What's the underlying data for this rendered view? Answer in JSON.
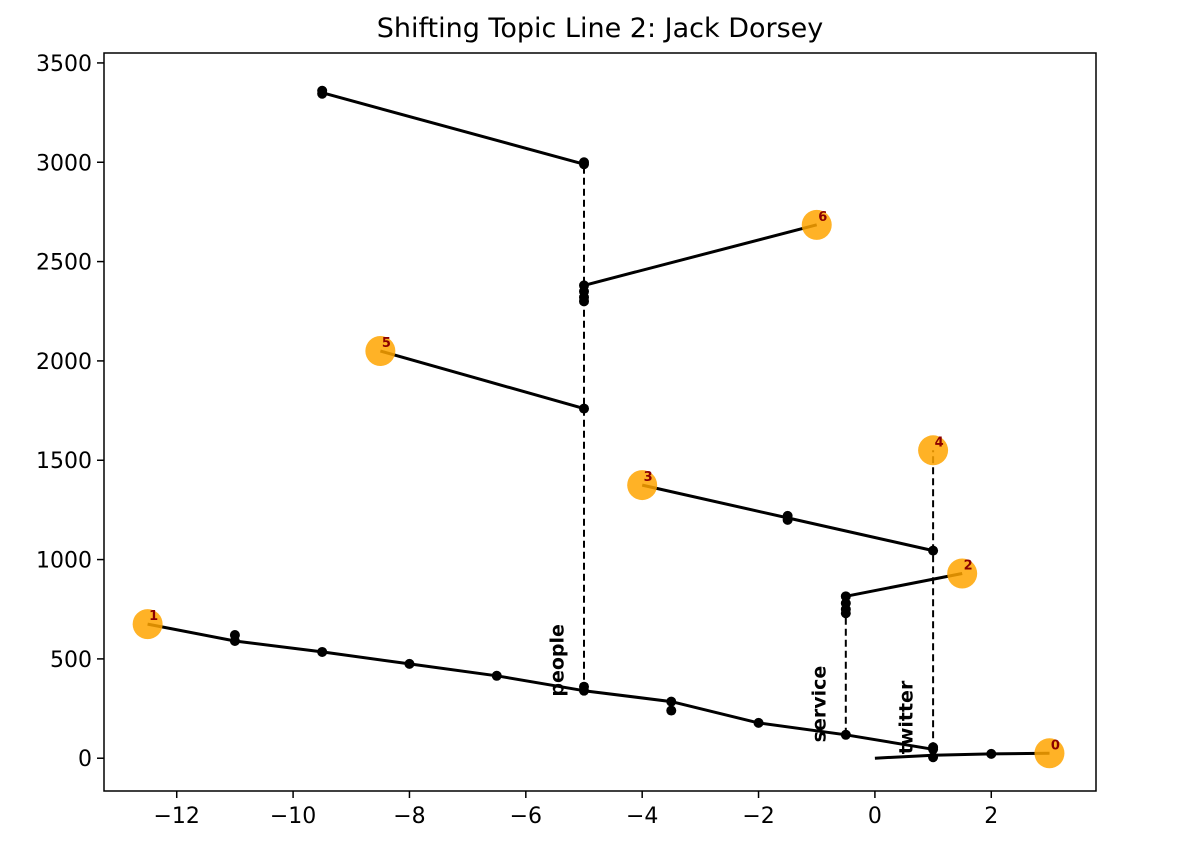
{
  "chart_data": {
    "type": "line",
    "title": "Shifting Topic Line 2: Jack Dorsey",
    "xlabel": "",
    "ylabel": "",
    "xlim": [
      -13.25,
      3.8
    ],
    "ylim": [
      -165,
      3550
    ],
    "x_ticks": [
      -12,
      -10,
      -8,
      -6,
      -4,
      -2,
      0,
      2
    ],
    "y_ticks": [
      0,
      500,
      1000,
      1500,
      2000,
      2500,
      3000,
      3500
    ],
    "grid": false,
    "colors": {
      "line": "#000000",
      "marker": "#000000",
      "highlight": "#ffa500",
      "highlight_label": "#8b0000"
    },
    "solid_segments": [
      [
        [
          -12.5,
          675
        ],
        [
          -11,
          590
        ],
        [
          -9.5,
          535
        ],
        [
          -8,
          475
        ],
        [
          -6.5,
          415
        ],
        [
          -5,
          340
        ],
        [
          -3.5,
          285
        ],
        [
          -2,
          178
        ],
        [
          -0.5,
          118
        ],
        [
          1,
          45
        ]
      ],
      [
        [
          0,
          0
        ],
        [
          1,
          15
        ],
        [
          2,
          22
        ],
        [
          3,
          25
        ]
      ],
      [
        [
          -0.5,
          815
        ],
        [
          1.5,
          930
        ]
      ],
      [
        [
          -4,
          1375
        ],
        [
          -1.5,
          1210
        ],
        [
          1,
          1045
        ]
      ],
      [
        [
          -8.5,
          2050
        ],
        [
          -5,
          1760
        ]
      ],
      [
        [
          -5,
          2380
        ],
        [
          -1,
          2685
        ]
      ],
      [
        [
          -9.5,
          3350
        ],
        [
          -5,
          2990
        ]
      ]
    ],
    "dashed_segments": [
      [
        [
          -5,
          340
        ],
        [
          -5,
          2990
        ]
      ],
      [
        [
          -0.5,
          118
        ],
        [
          -0.5,
          815
        ]
      ],
      [
        [
          1,
          45
        ],
        [
          1,
          1550
        ]
      ]
    ],
    "markers": [
      [
        -11,
        620
      ],
      [
        -11,
        590
      ],
      [
        -9.5,
        535
      ],
      [
        -8,
        475
      ],
      [
        -6.5,
        415
      ],
      [
        -5,
        360
      ],
      [
        -5,
        340
      ],
      [
        -3.5,
        285
      ],
      [
        -3.5,
        240
      ],
      [
        -2,
        178
      ],
      [
        -0.5,
        118
      ],
      [
        1,
        55
      ],
      [
        1,
        45
      ],
      [
        1,
        5
      ],
      [
        2,
        22
      ],
      [
        -0.5,
        815
      ],
      [
        -0.5,
        780
      ],
      [
        -0.5,
        750
      ],
      [
        -0.5,
        730
      ],
      [
        -1.5,
        1220
      ],
      [
        -1.5,
        1200
      ],
      [
        1,
        1045
      ],
      [
        -5,
        1760
      ],
      [
        -5,
        2380
      ],
      [
        -5,
        2350
      ],
      [
        -5,
        2320
      ],
      [
        -5,
        2300
      ],
      [
        -5,
        3000
      ],
      [
        -5,
        2990
      ],
      [
        -9.5,
        3360
      ],
      [
        -9.5,
        3345
      ]
    ],
    "highlights": [
      {
        "label": "0",
        "x": 3,
        "y": 25
      },
      {
        "label": "1",
        "x": -12.5,
        "y": 675
      },
      {
        "label": "2",
        "x": 1.5,
        "y": 930
      },
      {
        "label": "3",
        "x": -4,
        "y": 1375
      },
      {
        "label": "4",
        "x": 1,
        "y": 1550
      },
      {
        "label": "5",
        "x": -8.5,
        "y": 2050
      },
      {
        "label": "6",
        "x": -1,
        "y": 2685
      }
    ],
    "annotations": [
      {
        "text": "people",
        "x": -5.35,
        "y": 310
      },
      {
        "text": "service",
        "x": -0.85,
        "y": 80
      },
      {
        "text": "twitter",
        "x": 0.65,
        "y": 20
      }
    ]
  }
}
